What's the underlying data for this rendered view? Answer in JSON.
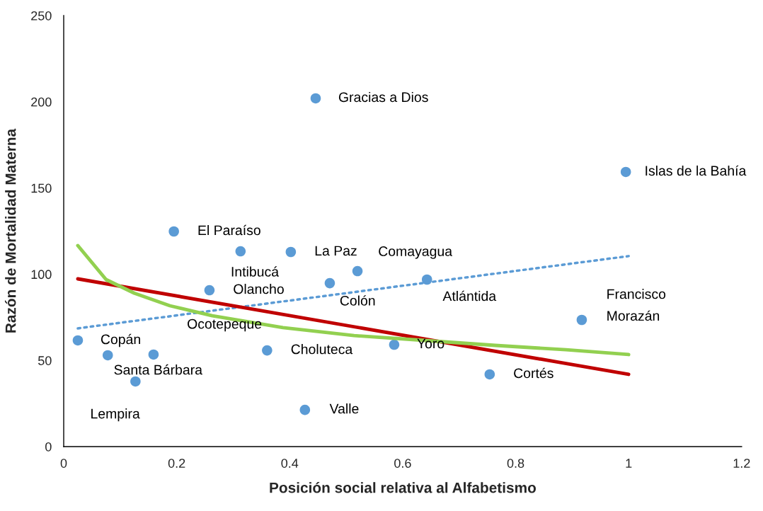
{
  "chart_data": {
    "type": "scatter",
    "xlabel": "Posición social relativa al Alfabetismo",
    "ylabel": "Razón de Mortalidad Materna",
    "xlim": [
      0,
      1.2
    ],
    "xticks": [
      0,
      0.2,
      0.4,
      0.6,
      0.8,
      1,
      1.2
    ],
    "ylim": [
      0,
      250
    ],
    "yticks": [
      0,
      50,
      100,
      150,
      200,
      250
    ],
    "grid": false,
    "series": [
      {
        "marker": "circle",
        "color": "#5b9bd5",
        "x": [
          0.025,
          0.078,
          0.159,
          0.127,
          0.195,
          0.313,
          0.402,
          0.258,
          0.36,
          0.446,
          0.471,
          0.52,
          0.427,
          0.585,
          0.643,
          0.754,
          0.917,
          0.995
        ],
        "values": [
          61.6,
          53,
          53.4,
          37.8,
          124.8,
          113.3,
          112.9,
          90.7,
          55.8,
          202,
          94.8,
          101.8,
          21.3,
          59.1,
          96.9,
          41.9,
          73.5,
          159.3
        ]
      },
      {
        "type": "line",
        "marker": "none",
        "color": "#5b9bd5",
        "line_style": "dotted",
        "x": [
          0.025,
          1.0
        ],
        "values": [
          68.6,
          110.5
        ]
      },
      {
        "type": "line",
        "marker": "none",
        "color": "#c00000",
        "line_style": "solid",
        "x": [
          0.025,
          1.0
        ],
        "values": [
          97.3,
          41.9
        ]
      },
      {
        "type": "line",
        "marker": "none",
        "color": "#92d050",
        "line_style": "solid",
        "x": [
          0.025,
          0.075,
          0.125,
          0.188,
          0.263,
          0.388,
          0.514,
          0.639,
          0.764,
          0.889,
          1.0
        ],
        "values": [
          116.6,
          96.9,
          89,
          81.7,
          75.9,
          69,
          64.4,
          61.6,
          58.7,
          56.2,
          53.4
        ]
      }
    ],
    "annotations": [
      {
        "text": "Copán",
        "x": 0.025,
        "y": 61.6
      },
      {
        "text": "Santa Bárbara",
        "x": 0.078,
        "y": 53
      },
      {
        "text": "Ocotepeque",
        "x": 0.159,
        "y": 53.4
      },
      {
        "text": "Lempira",
        "x": 0.127,
        "y": 37.8
      },
      {
        "text": "El Paraíso",
        "x": 0.195,
        "y": 124.8
      },
      {
        "text": "Intibucá",
        "x": 0.313,
        "y": 113.3
      },
      {
        "text": "La Paz",
        "x": 0.402,
        "y": 112.9
      },
      {
        "text": "Olancho",
        "x": 0.258,
        "y": 90.7
      },
      {
        "text": "Choluteca",
        "x": 0.36,
        "y": 55.8
      },
      {
        "text": "Gracias a Dios",
        "x": 0.446,
        "y": 202
      },
      {
        "text": "Colón",
        "x": 0.471,
        "y": 94.8
      },
      {
        "text": "Comayagua",
        "x": 0.52,
        "y": 101.8
      },
      {
        "text": "Valle",
        "x": 0.427,
        "y": 21.3
      },
      {
        "text": "Yoro",
        "x": 0.585,
        "y": 59.1
      },
      {
        "text": "Atlántida",
        "x": 0.643,
        "y": 96.9
      },
      {
        "text": "Cortés",
        "x": 0.754,
        "y": 41.9
      },
      {
        "text": "Francisco\nMorazán",
        "x": 0.917,
        "y": 73.5
      },
      {
        "text": "Islas de la Bahía",
        "x": 0.995,
        "y": 159.3
      }
    ]
  }
}
